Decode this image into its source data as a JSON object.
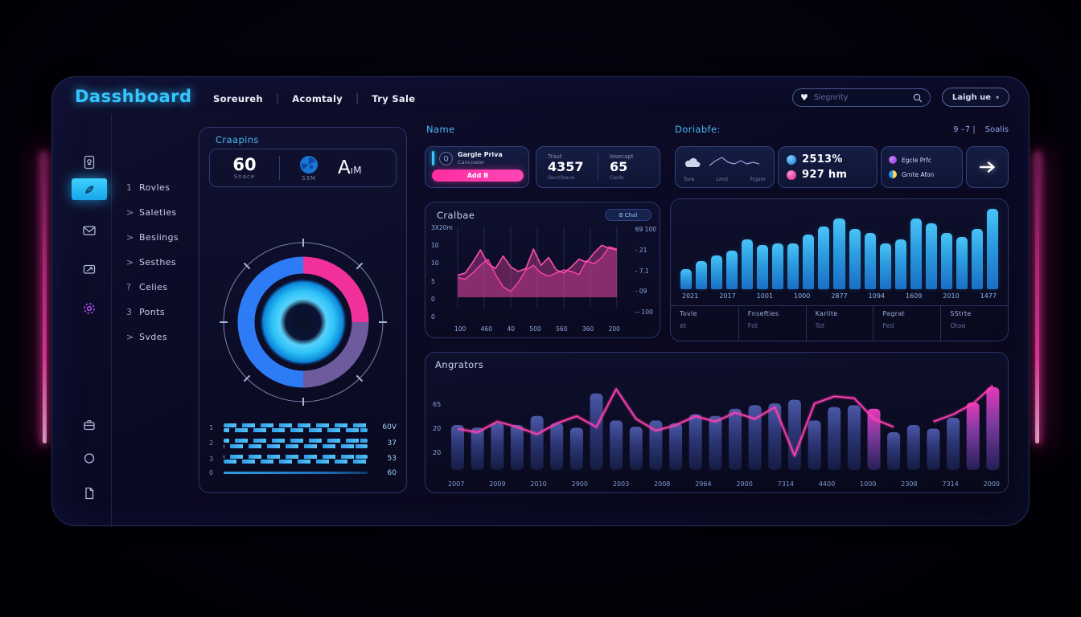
{
  "theme": {
    "accent_cyan": "#35c6ff",
    "accent_pink": "#ff2d9e",
    "bar_blue": "#2aa6e8",
    "purple": "#6e5b9e",
    "panel_border": "#2a3568"
  },
  "app": {
    "title": "Dasshboard"
  },
  "nav": {
    "items": [
      "Soreureh",
      "Acomtaly",
      "Try Sale"
    ]
  },
  "search": {
    "placeholder": "Siegnrity"
  },
  "account_button": {
    "label": "Laigh ue",
    "caret": "▾"
  },
  "sidebar": {
    "menu": [
      {
        "prefix": "1",
        "label": "Rovles"
      },
      {
        "prefix": ">",
        "label": "Saleties"
      },
      {
        "prefix": ">",
        "label": "Besiings"
      },
      {
        "prefix": ">",
        "label": "Sesthes"
      },
      {
        "prefix": "?",
        "label": "Celies"
      },
      {
        "prefix": "3",
        "label": "Ponts"
      },
      {
        "prefix": ">",
        "label": "Svdes"
      }
    ]
  },
  "craapins": {
    "title": "Craapins",
    "stat": {
      "value": "60",
      "label": "Snace",
      "icon_label": "S3M",
      "big_text": "A",
      "big_suffix": "ıM"
    },
    "rows": [
      {
        "label": "1",
        "value": "60V"
      },
      {
        "label": "2",
        "value": "37"
      },
      {
        "label": "3",
        "value": "53"
      },
      {
        "label": "0",
        "value": "60"
      }
    ]
  },
  "name_section": {
    "title": "Name",
    "card1": {
      "title": "Gargle Priva",
      "subtitle": "Cancoater",
      "button_label": "Add B"
    },
    "card2": {
      "cols": [
        {
          "label": "Traut",
          "value": "4357",
          "sub": "Devtibave"
        },
        {
          "label": "Iosecapt",
          "value": "65",
          "sub": "Cwds"
        }
      ]
    }
  },
  "right_section": {
    "title": "Doriabfe:",
    "range_label": "9 –7 |",
    "status_label": "Soalis",
    "weather_card": {
      "labels": [
        "Ture",
        "Lmrt",
        "Frgsm"
      ]
    },
    "stats_card": {
      "rows": [
        {
          "icon": "blue-dot",
          "value": "2513%"
        },
        {
          "icon": "pink-dot",
          "value": "927 hm"
        }
      ]
    },
    "legend_card": {
      "rows": [
        {
          "icon": "purple-dot",
          "label": "Egcle Prfc"
        },
        {
          "icon": "pie-dot",
          "label": "Grnte Afon"
        }
      ]
    }
  },
  "chart_data": [
    {
      "type": "pie",
      "name": "craapins-gauge",
      "slices": [
        {
          "label": "pink",
          "value": 25,
          "color": "#f2309b"
        },
        {
          "label": "purple",
          "value": 25,
          "color": "#6e5b9e"
        },
        {
          "label": "blue",
          "value": 50,
          "color": "#2e7bf6"
        }
      ],
      "center_glow_color": "#2ec2f7"
    },
    {
      "type": "area",
      "name": "cralbae",
      "title": "Cralbae",
      "badge": "B Chal",
      "ylim": [
        0,
        10
      ],
      "yticks_left": [
        "3X20m",
        "10",
        "10",
        "5",
        "0",
        "0"
      ],
      "yticks_right": [
        "69 100",
        "- 21",
        "- 7.1",
        "- 09",
        "-- 100"
      ],
      "xticks": [
        "100",
        "460",
        "40",
        "500",
        "560",
        "360",
        "200"
      ],
      "grid": "vertical",
      "series": [
        {
          "name": "band-b",
          "color": "#e23a9e",
          "values": [
            4.0,
            3.8,
            4.6,
            5.6,
            6.4,
            4.4,
            2.8,
            2.2,
            3.4,
            5.0,
            5.6,
            4.6,
            4.2,
            4.6,
            5.0,
            4.8,
            4.4,
            6.2,
            5.8,
            6.6,
            8.0,
            7.7
          ]
        },
        {
          "name": "band-a",
          "color": "#ff4fb0",
          "values": [
            4.3,
            4.6,
            6.0,
            7.6,
            5.8,
            5.2,
            6.8,
            5.4,
            4.8,
            5.2,
            7.7,
            5.6,
            6.6,
            5.0,
            4.6,
            5.4,
            6.4,
            6.0,
            7.2,
            8.2,
            7.8,
            7.6
          ]
        }
      ]
    },
    {
      "type": "bar",
      "name": "doriabfe-bars",
      "ylim": [
        0,
        100
      ],
      "values": [
        25,
        35,
        42,
        48,
        62,
        55,
        57,
        57,
        68,
        78,
        88,
        75,
        70,
        57,
        62,
        88,
        82,
        70,
        65,
        75,
        100
      ],
      "xticks": [
        "2021",
        "2017",
        "1001",
        "1000",
        "2877",
        "1094",
        "1609",
        "2010",
        "1477"
      ],
      "footer": [
        {
          "label": "Tovle",
          "value": "et"
        },
        {
          "label": "Fnsefties",
          "value": "Fot"
        },
        {
          "label": "Karlite",
          "value": "Tot"
        },
        {
          "label": "Pagrat",
          "value": "Fed"
        },
        {
          "label": "SStrte",
          "value": "Otoe"
        }
      ]
    },
    {
      "type": "combo",
      "name": "angrators",
      "title": "Angrators",
      "ylim": [
        0,
        100
      ],
      "yticks": [
        "65",
        "20",
        "20"
      ],
      "bar_values": [
        50,
        47,
        52,
        50,
        60,
        52,
        47,
        85,
        55,
        48,
        55,
        52,
        62,
        60,
        68,
        72,
        74,
        78,
        55,
        70,
        72,
        68,
        42,
        50,
        46,
        58,
        75,
        92
      ],
      "pink_bars": [
        21,
        26,
        27
      ],
      "line_values": [
        44,
        40,
        52,
        46,
        38,
        50,
        58,
        46,
        88,
        55,
        42,
        48,
        58,
        52,
        62,
        55,
        68,
        14,
        72,
        80,
        78,
        55,
        46,
        null,
        52,
        60,
        72,
        92
      ],
      "xticks": [
        "2007",
        "2009",
        "2010",
        "2900",
        "2003",
        "2008",
        "2964",
        "2900",
        "7314",
        "4400",
        "1000",
        "2308",
        "7314",
        "2000"
      ]
    },
    {
      "type": "line",
      "name": "weather-sparkline",
      "values": [
        3,
        6,
        8,
        5,
        4,
        6,
        4,
        5,
        4
      ]
    }
  ]
}
